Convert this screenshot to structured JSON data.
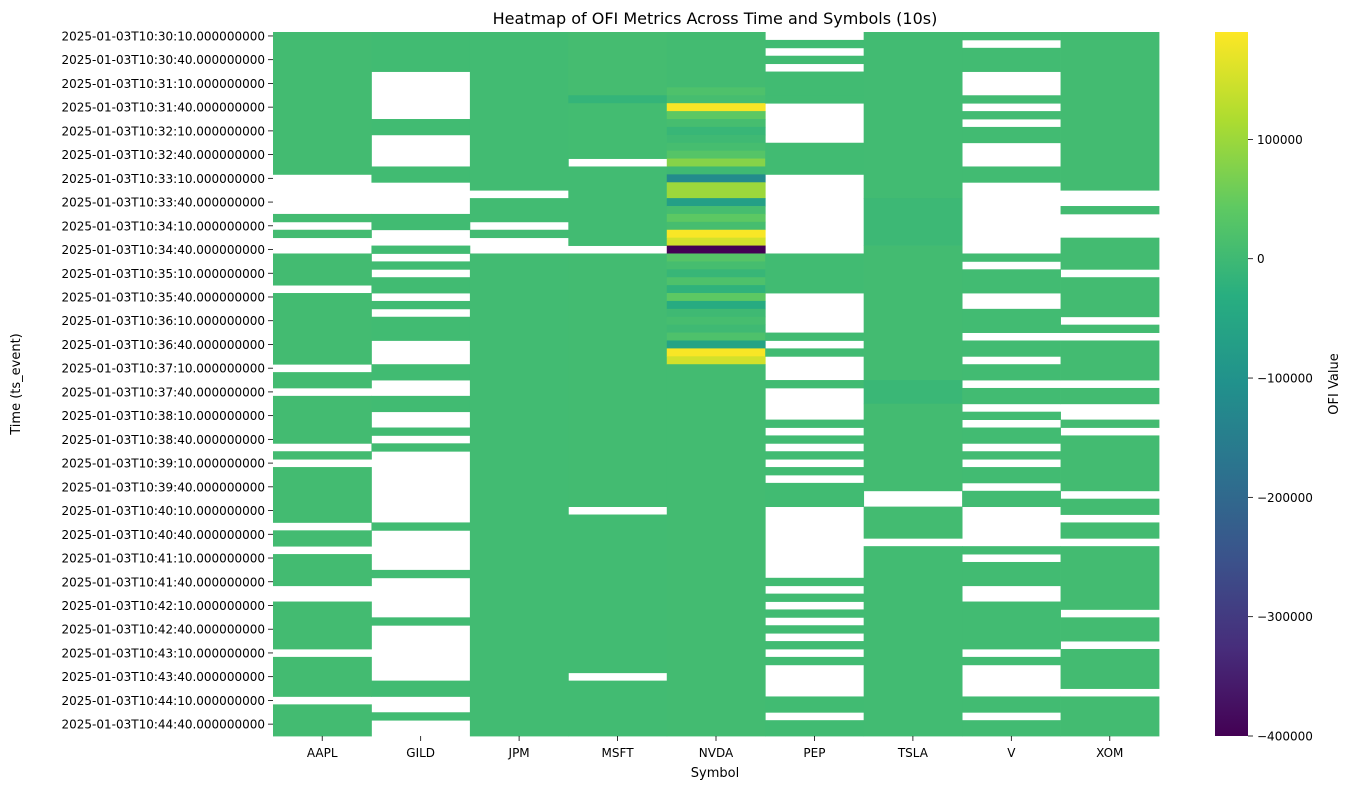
{
  "chart_data": {
    "type": "heatmap",
    "title": "Heatmap of OFI Metrics Across Time and Symbols (10s)",
    "xlabel": "Symbol",
    "ylabel": "Time (ts_event)",
    "x_categories": [
      "AAPL",
      "GILD",
      "JPM",
      "MSFT",
      "NVDA",
      "PEP",
      "TSLA",
      "V",
      "XOM"
    ],
    "y_tick_labels": [
      "2025-01-03T10:30:10.000000000",
      "2025-01-03T10:30:40.000000000",
      "2025-01-03T10:31:10.000000000",
      "2025-01-03T10:31:40.000000000",
      "2025-01-03T10:32:10.000000000",
      "2025-01-03T10:32:40.000000000",
      "2025-01-03T10:33:10.000000000",
      "2025-01-03T10:33:40.000000000",
      "2025-01-03T10:34:10.000000000",
      "2025-01-03T10:34:40.000000000",
      "2025-01-03T10:35:10.000000000",
      "2025-01-03T10:35:40.000000000",
      "2025-01-03T10:36:10.000000000",
      "2025-01-03T10:36:40.000000000",
      "2025-01-03T10:37:10.000000000",
      "2025-01-03T10:37:40.000000000",
      "2025-01-03T10:38:10.000000000",
      "2025-01-03T10:38:40.000000000",
      "2025-01-03T10:39:10.000000000",
      "2025-01-03T10:39:40.000000000",
      "2025-01-03T10:40:10.000000000",
      "2025-01-03T10:40:40.000000000",
      "2025-01-03T10:41:10.000000000",
      "2025-01-03T10:41:40.000000000",
      "2025-01-03T10:42:10.000000000",
      "2025-01-03T10:42:40.000000000",
      "2025-01-03T10:43:10.000000000",
      "2025-01-03T10:43:40.000000000",
      "2025-01-03T10:44:10.000000000",
      "2025-01-03T10:44:40.000000000"
    ],
    "time_axis": {
      "first": "2025-01-03T10:30:10.000000000",
      "last": "2025-01-03T10:44:40.000000000",
      "tick_interval_s": 30,
      "rows": 89
    },
    "colorbar": {
      "label": "OFI Value",
      "colormap": "viridis",
      "vmin": -400000,
      "vmax": 190000,
      "ticks": [
        -400000,
        -300000,
        -200000,
        -100000,
        0,
        100000
      ],
      "tick_labels": [
        "−400000",
        "−300000",
        "−200000",
        "−100000",
        "0",
        "100000"
      ]
    },
    "missing_color": "#ffffff",
    "grid": false,
    "series": [
      {
        "name": "AAPL",
        "segments": [
          {
            "from": 0,
            "to": 18,
            "value": 5000
          },
          {
            "from": 23,
            "to": 24,
            "value": 5000
          },
          {
            "from": 25,
            "to": 26,
            "value": 5000
          },
          {
            "from": 28,
            "to": 32,
            "value": 5000
          },
          {
            "from": 33,
            "to": 42,
            "value": 5000
          },
          {
            "from": 43,
            "to": 45,
            "value": 5000
          },
          {
            "from": 46,
            "to": 52,
            "value": 5000
          },
          {
            "from": 53,
            "to": 54,
            "value": 5000
          },
          {
            "from": 55,
            "to": 62,
            "value": 5000
          },
          {
            "from": 63,
            "to": 65,
            "value": 5000
          },
          {
            "from": 66,
            "to": 70,
            "value": 5000
          },
          {
            "from": 72,
            "to": 78,
            "value": 5000
          },
          {
            "from": 79,
            "to": 84,
            "value": 5000
          },
          {
            "from": 85,
            "to": 89,
            "value": 5000
          }
        ]
      },
      {
        "name": "GILD",
        "segments": [
          {
            "from": 0,
            "to": 5,
            "value": 3000
          },
          {
            "from": 11,
            "to": 13,
            "value": 3000
          },
          {
            "from": 17,
            "to": 19,
            "value": 3000
          },
          {
            "from": 23,
            "to": 25,
            "value": 3000
          },
          {
            "from": 27,
            "to": 28,
            "value": 3000
          },
          {
            "from": 29,
            "to": 30,
            "value": 3000
          },
          {
            "from": 31,
            "to": 33,
            "value": 3000
          },
          {
            "from": 34,
            "to": 35,
            "value": 3000
          },
          {
            "from": 36,
            "to": 39,
            "value": 3000
          },
          {
            "from": 42,
            "to": 44,
            "value": 3000
          },
          {
            "from": 46,
            "to": 48,
            "value": 3000
          },
          {
            "from": 50,
            "to": 51,
            "value": 3000
          },
          {
            "from": 52,
            "to": 53,
            "value": 3000
          },
          {
            "from": 62,
            "to": 63,
            "value": 3000
          },
          {
            "from": 68,
            "to": 69,
            "value": 3000
          },
          {
            "from": 74,
            "to": 75,
            "value": 3000
          },
          {
            "from": 82,
            "to": 84,
            "value": 3000
          },
          {
            "from": 86,
            "to": 87,
            "value": 3000
          }
        ]
      },
      {
        "name": "JPM",
        "segments": [
          {
            "from": 0,
            "to": 20,
            "value": 4000
          },
          {
            "from": 21,
            "to": 24,
            "value": 4000
          },
          {
            "from": 25,
            "to": 26,
            "value": 4000
          },
          {
            "from": 28,
            "to": 89,
            "value": 4000
          }
        ]
      },
      {
        "name": "MSFT",
        "segments": [
          {
            "from": 0,
            "to": 8,
            "value": 8000
          },
          {
            "from": 8,
            "to": 9,
            "value": -15000
          },
          {
            "from": 9,
            "to": 16,
            "value": 6000
          },
          {
            "from": 17,
            "to": 27,
            "value": 4000
          },
          {
            "from": 28,
            "to": 60,
            "value": 5000
          },
          {
            "from": 61,
            "to": 81,
            "value": 4000
          },
          {
            "from": 82,
            "to": 89,
            "value": 4000
          }
        ]
      },
      {
        "name": "NVDA",
        "segments": [
          {
            "from": 0,
            "to": 7,
            "value": 5000
          },
          {
            "from": 7,
            "to": 8,
            "value": 20000
          },
          {
            "from": 8,
            "to": 9,
            "value": 10000
          },
          {
            "from": 9,
            "to": 10,
            "value": 185000
          },
          {
            "from": 10,
            "to": 11,
            "value": 40000
          },
          {
            "from": 11,
            "to": 12,
            "value": 10000
          },
          {
            "from": 12,
            "to": 13,
            "value": -10000
          },
          {
            "from": 13,
            "to": 14,
            "value": 0
          },
          {
            "from": 14,
            "to": 15,
            "value": 10000
          },
          {
            "from": 15,
            "to": 16,
            "value": 30000
          },
          {
            "from": 16,
            "to": 17,
            "value": 80000
          },
          {
            "from": 17,
            "to": 18,
            "value": 0
          },
          {
            "from": 18,
            "to": 19,
            "value": -120000
          },
          {
            "from": 19,
            "to": 21,
            "value": 100000
          },
          {
            "from": 21,
            "to": 22,
            "value": -70000
          },
          {
            "from": 22,
            "to": 23,
            "value": 10000
          },
          {
            "from": 23,
            "to": 24,
            "value": 40000
          },
          {
            "from": 24,
            "to": 25,
            "value": 10000
          },
          {
            "from": 25,
            "to": 26,
            "value": 185000
          },
          {
            "from": 26,
            "to": 27,
            "value": 150000
          },
          {
            "from": 27,
            "to": 28,
            "value": -400000
          },
          {
            "from": 28,
            "to": 29,
            "value": 30000
          },
          {
            "from": 29,
            "to": 30,
            "value": 10000
          },
          {
            "from": 30,
            "to": 31,
            "value": -10000
          },
          {
            "from": 31,
            "to": 32,
            "value": 20000
          },
          {
            "from": 32,
            "to": 33,
            "value": -20000
          },
          {
            "from": 33,
            "to": 34,
            "value": 40000
          },
          {
            "from": 34,
            "to": 35,
            "value": -40000
          },
          {
            "from": 35,
            "to": 36,
            "value": 0
          },
          {
            "from": 36,
            "to": 37,
            "value": 10000
          },
          {
            "from": 37,
            "to": 38,
            "value": 0
          },
          {
            "from": 38,
            "to": 39,
            "value": 20000
          },
          {
            "from": 39,
            "to": 40,
            "value": -60000
          },
          {
            "from": 40,
            "to": 41,
            "value": 185000
          },
          {
            "from": 41,
            "to": 42,
            "value": 150000
          },
          {
            "from": 42,
            "to": 89,
            "value": 5000
          }
        ]
      },
      {
        "name": "PEP",
        "segments": [
          {
            "from": 1,
            "to": 2,
            "value": 3000
          },
          {
            "from": 3,
            "to": 4,
            "value": 3000
          },
          {
            "from": 5,
            "to": 8,
            "value": 3000
          },
          {
            "from": 8,
            "to": 9,
            "value": 3000
          },
          {
            "from": 14,
            "to": 18,
            "value": 3000
          },
          {
            "from": 28,
            "to": 33,
            "value": 3000
          },
          {
            "from": 38,
            "to": 39,
            "value": 3000
          },
          {
            "from": 40,
            "to": 41,
            "value": 3000
          },
          {
            "from": 44,
            "to": 45,
            "value": 3000
          },
          {
            "from": 49,
            "to": 50,
            "value": 3000
          },
          {
            "from": 51,
            "to": 52,
            "value": 3000
          },
          {
            "from": 53,
            "to": 54,
            "value": 3000
          },
          {
            "from": 55,
            "to": 56,
            "value": 3000
          },
          {
            "from": 57,
            "to": 60,
            "value": 3000
          },
          {
            "from": 69,
            "to": 70,
            "value": 3000
          },
          {
            "from": 71,
            "to": 72,
            "value": 3000
          },
          {
            "from": 73,
            "to": 74,
            "value": 3000
          },
          {
            "from": 75,
            "to": 76,
            "value": 3000
          },
          {
            "from": 77,
            "to": 78,
            "value": 3000
          },
          {
            "from": 79,
            "to": 80,
            "value": 3000
          },
          {
            "from": 84,
            "to": 86,
            "value": 3000
          },
          {
            "from": 87,
            "to": 89,
            "value": 3000
          }
        ]
      },
      {
        "name": "TSLA",
        "segments": [
          {
            "from": 0,
            "to": 21,
            "value": 4000
          },
          {
            "from": 21,
            "to": 27,
            "value": -3000
          },
          {
            "from": 27,
            "to": 44,
            "value": 5000
          },
          {
            "from": 44,
            "to": 47,
            "value": -6000
          },
          {
            "from": 47,
            "to": 58,
            "value": 5000
          },
          {
            "from": 60,
            "to": 64,
            "value": 5000
          },
          {
            "from": 65,
            "to": 89,
            "value": 4000
          }
        ]
      },
      {
        "name": "V",
        "segments": [
          {
            "from": 0,
            "to": 1,
            "value": 4000
          },
          {
            "from": 2,
            "to": 5,
            "value": 4000
          },
          {
            "from": 8,
            "to": 9,
            "value": 4000
          },
          {
            "from": 10,
            "to": 11,
            "value": 4000
          },
          {
            "from": 12,
            "to": 14,
            "value": 4000
          },
          {
            "from": 17,
            "to": 19,
            "value": 4000
          },
          {
            "from": 28,
            "to": 29,
            "value": 4000
          },
          {
            "from": 30,
            "to": 33,
            "value": 4000
          },
          {
            "from": 35,
            "to": 38,
            "value": 4000
          },
          {
            "from": 39,
            "to": 41,
            "value": 4000
          },
          {
            "from": 42,
            "to": 44,
            "value": 4000
          },
          {
            "from": 45,
            "to": 47,
            "value": 4000
          },
          {
            "from": 48,
            "to": 49,
            "value": 4000
          },
          {
            "from": 50,
            "to": 52,
            "value": 4000
          },
          {
            "from": 53,
            "to": 54,
            "value": 4000
          },
          {
            "from": 55,
            "to": 57,
            "value": 4000
          },
          {
            "from": 58,
            "to": 60,
            "value": 4000
          },
          {
            "from": 65,
            "to": 66,
            "value": 4000
          },
          {
            "from": 67,
            "to": 70,
            "value": 4000
          },
          {
            "from": 72,
            "to": 78,
            "value": 4000
          },
          {
            "from": 79,
            "to": 80,
            "value": 4000
          },
          {
            "from": 84,
            "to": 86,
            "value": 4000
          },
          {
            "from": 87,
            "to": 89,
            "value": 4000
          }
        ]
      },
      {
        "name": "XOM",
        "segments": [
          {
            "from": 0,
            "to": 20,
            "value": 5000
          },
          {
            "from": 22,
            "to": 23,
            "value": 5000
          },
          {
            "from": 26,
            "to": 30,
            "value": 5000
          },
          {
            "from": 31,
            "to": 36,
            "value": 5000
          },
          {
            "from": 37,
            "to": 38,
            "value": 5000
          },
          {
            "from": 39,
            "to": 44,
            "value": 5000
          },
          {
            "from": 45,
            "to": 47,
            "value": 5000
          },
          {
            "from": 49,
            "to": 50,
            "value": 5000
          },
          {
            "from": 51,
            "to": 58,
            "value": 5000
          },
          {
            "from": 59,
            "to": 61,
            "value": 5000
          },
          {
            "from": 62,
            "to": 64,
            "value": 5000
          },
          {
            "from": 65,
            "to": 73,
            "value": 5000
          },
          {
            "from": 74,
            "to": 77,
            "value": 5000
          },
          {
            "from": 78,
            "to": 83,
            "value": 5000
          },
          {
            "from": 84,
            "to": 89,
            "value": 5000
          }
        ]
      }
    ]
  }
}
